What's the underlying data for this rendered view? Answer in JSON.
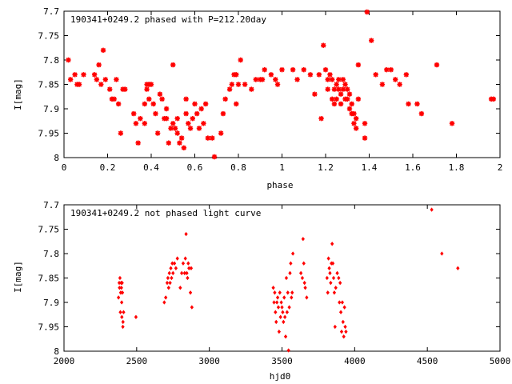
{
  "chart_data": [
    {
      "type": "scatter",
      "title": "190341+0249.2 phased with P=212.20day",
      "xlabel": "phase",
      "ylabel": "I[mag]",
      "xlim": [
        0,
        2
      ],
      "ylim": [
        8,
        7.7
      ],
      "y_inverted": true,
      "xticks": [
        "0",
        "0.2",
        "0.4",
        "0.6",
        "0.8",
        "1",
        "1.2",
        "1.4",
        "1.6",
        "1.8",
        "2"
      ],
      "yticks": [
        "7.7",
        "7.75",
        "7.8",
        "7.85",
        "7.9",
        "7.95",
        "8"
      ],
      "marker_color": "#ff0000",
      "marker": "star",
      "grid": false,
      "series": [
        {
          "points": [
            [
              0.02,
              7.8
            ],
            [
              0.03,
              7.84
            ],
            [
              0.05,
              7.83
            ],
            [
              0.06,
              7.85
            ],
            [
              0.07,
              7.85
            ],
            [
              0.09,
              7.83
            ],
            [
              0.14,
              7.83
            ],
            [
              0.15,
              7.84
            ],
            [
              0.16,
              7.81
            ],
            [
              0.17,
              7.85
            ],
            [
              0.18,
              7.78
            ],
            [
              0.19,
              7.84
            ],
            [
              0.21,
              7.86
            ],
            [
              0.22,
              7.88
            ],
            [
              0.23,
              7.88
            ],
            [
              0.24,
              7.84
            ],
            [
              0.25,
              7.89
            ],
            [
              0.26,
              7.95
            ],
            [
              0.27,
              7.86
            ],
            [
              0.28,
              7.86
            ],
            [
              0.32,
              7.91
            ],
            [
              0.33,
              7.93
            ],
            [
              0.34,
              7.97
            ],
            [
              0.35,
              7.92
            ],
            [
              0.37,
              7.93
            ],
            [
              0.37,
              7.89
            ],
            [
              0.38,
              7.86
            ],
            [
              0.38,
              7.85
            ],
            [
              0.39,
              7.88
            ],
            [
              0.39,
              7.85
            ],
            [
              0.4,
              7.85
            ],
            [
              0.41,
              7.89
            ],
            [
              0.42,
              7.91
            ],
            [
              0.43,
              7.95
            ],
            [
              0.44,
              7.87
            ],
            [
              0.45,
              7.88
            ],
            [
              0.46,
              7.92
            ],
            [
              0.47,
              7.9
            ],
            [
              0.47,
              7.92
            ],
            [
              0.48,
              7.97
            ],
            [
              0.49,
              7.94
            ],
            [
              0.5,
              7.81
            ],
            [
              0.5,
              7.93
            ],
            [
              0.51,
              7.94
            ],
            [
              0.52,
              7.95
            ],
            [
              0.52,
              7.92
            ],
            [
              0.53,
              7.97
            ],
            [
              0.54,
              7.96
            ],
            [
              0.55,
              7.98
            ],
            [
              0.56,
              7.88
            ],
            [
              0.56,
              7.91
            ],
            [
              0.57,
              7.93
            ],
            [
              0.58,
              7.94
            ],
            [
              0.59,
              7.92
            ],
            [
              0.6,
              7.89
            ],
            [
              0.61,
              7.91
            ],
            [
              0.62,
              7.94
            ],
            [
              0.63,
              7.9
            ],
            [
              0.64,
              7.93
            ],
            [
              0.65,
              7.89
            ],
            [
              0.66,
              7.96
            ],
            [
              0.68,
              7.96
            ],
            [
              0.69,
              8.0
            ],
            [
              0.72,
              7.95
            ],
            [
              0.73,
              7.91
            ],
            [
              0.74,
              7.88
            ],
            [
              0.76,
              7.86
            ],
            [
              0.77,
              7.85
            ],
            [
              0.78,
              7.83
            ],
            [
              0.79,
              7.89
            ],
            [
              0.79,
              7.83
            ],
            [
              0.8,
              7.85
            ],
            [
              0.81,
              7.8
            ],
            [
              0.83,
              7.85
            ],
            [
              0.86,
              7.86
            ],
            [
              0.88,
              7.84
            ],
            [
              0.9,
              7.84
            ],
            [
              0.91,
              7.84
            ],
            [
              0.92,
              7.82
            ],
            [
              0.95,
              7.83
            ],
            [
              0.97,
              7.84
            ],
            [
              0.98,
              7.85
            ],
            [
              1.0,
              7.82
            ],
            [
              1.05,
              7.82
            ],
            [
              1.07,
              7.84
            ],
            [
              1.1,
              7.82
            ],
            [
              1.13,
              7.83
            ],
            [
              1.15,
              7.87
            ],
            [
              1.17,
              7.83
            ],
            [
              1.18,
              7.92
            ],
            [
              1.19,
              7.77
            ],
            [
              1.2,
              7.82
            ],
            [
              1.21,
              7.86
            ],
            [
              1.21,
              7.84
            ],
            [
              1.22,
              7.83
            ],
            [
              1.23,
              7.88
            ],
            [
              1.23,
              7.84
            ],
            [
              1.24,
              7.89
            ],
            [
              1.24,
              7.86
            ],
            [
              1.25,
              7.88
            ],
            [
              1.25,
              7.85
            ],
            [
              1.26,
              7.84
            ],
            [
              1.26,
              7.86
            ],
            [
              1.27,
              7.87
            ],
            [
              1.27,
              7.89
            ],
            [
              1.28,
              7.86
            ],
            [
              1.28,
              7.84
            ],
            [
              1.29,
              7.88
            ],
            [
              1.29,
              7.85
            ],
            [
              1.3,
              7.86
            ],
            [
              1.3,
              7.88
            ],
            [
              1.31,
              7.87
            ],
            [
              1.31,
              7.9
            ],
            [
              1.32,
              7.91
            ],
            [
              1.32,
              7.89
            ],
            [
              1.33,
              7.93
            ],
            [
              1.33,
              7.91
            ],
            [
              1.34,
              7.94
            ],
            [
              1.34,
              7.92
            ],
            [
              1.35,
              7.88
            ],
            [
              1.35,
              7.81
            ],
            [
              1.38,
              7.96
            ],
            [
              1.38,
              7.93
            ],
            [
              1.39,
              7.7
            ],
            [
              1.41,
              7.76
            ],
            [
              1.43,
              7.83
            ],
            [
              1.46,
              7.85
            ],
            [
              1.48,
              7.82
            ],
            [
              1.5,
              7.82
            ],
            [
              1.52,
              7.84
            ],
            [
              1.54,
              7.85
            ],
            [
              1.57,
              7.83
            ],
            [
              1.58,
              7.89
            ],
            [
              1.62,
              7.89
            ],
            [
              1.64,
              7.91
            ],
            [
              1.71,
              7.81
            ],
            [
              1.78,
              7.93
            ],
            [
              1.96,
              7.88
            ],
            [
              1.97,
              7.88
            ]
          ]
        }
      ]
    },
    {
      "type": "scatter",
      "title": "190341+0249.2 not phased light curve",
      "xlabel": "hjd0",
      "ylabel": "I[mag]",
      "xlim": [
        2000,
        5000
      ],
      "ylim": [
        8,
        7.7
      ],
      "y_inverted": true,
      "xticks": [
        "2000",
        "2500",
        "3000",
        "3500",
        "4000",
        "4500",
        "5000"
      ],
      "yticks": [
        "7.7",
        "7.75",
        "7.8",
        "7.85",
        "7.9",
        "7.95",
        "8"
      ],
      "marker_color": "#ff0000",
      "marker": "diamond",
      "grid": false,
      "series": [
        {
          "points": [
            [
              2375,
              7.89
            ],
            [
              2380,
              7.86
            ],
            [
              2382,
              7.87
            ],
            [
              2385,
              7.85
            ],
            [
              2388,
              7.92
            ],
            [
              2390,
              7.88
            ],
            [
              2393,
              7.86
            ],
            [
              2395,
              7.87
            ],
            [
              2397,
              7.9
            ],
            [
              2398,
              7.93
            ],
            [
              2400,
              7.86
            ],
            [
              2402,
              7.88
            ],
            [
              2405,
              7.95
            ],
            [
              2406,
              7.94
            ],
            [
              2410,
              7.92
            ],
            [
              2495,
              7.93
            ],
            [
              2690,
              7.9
            ],
            [
              2700,
              7.89
            ],
            [
              2710,
              7.86
            ],
            [
              2715,
              7.85
            ],
            [
              2720,
              7.87
            ],
            [
              2725,
              7.84
            ],
            [
              2730,
              7.86
            ],
            [
              2735,
              7.83
            ],
            [
              2740,
              7.85
            ],
            [
              2745,
              7.82
            ],
            [
              2750,
              7.84
            ],
            [
              2760,
              7.82
            ],
            [
              2770,
              7.83
            ],
            [
              2780,
              7.81
            ],
            [
              2800,
              7.87
            ],
            [
              2810,
              7.84
            ],
            [
              2820,
              7.82
            ],
            [
              2830,
              7.84
            ],
            [
              2835,
              7.81
            ],
            [
              2840,
              7.76
            ],
            [
              2845,
              7.84
            ],
            [
              2850,
              7.85
            ],
            [
              2855,
              7.82
            ],
            [
              2860,
              7.83
            ],
            [
              2870,
              7.88
            ],
            [
              2875,
              7.83
            ],
            [
              2880,
              7.91
            ],
            [
              3440,
              7.87
            ],
            [
              3445,
              7.9
            ],
            [
              3450,
              7.88
            ],
            [
              3455,
              7.92
            ],
            [
              3460,
              7.94
            ],
            [
              3465,
              7.9
            ],
            [
              3470,
              7.89
            ],
            [
              3475,
              7.91
            ],
            [
              3480,
              7.96
            ],
            [
              3485,
              7.88
            ],
            [
              3490,
              7.93
            ],
            [
              3495,
              7.9
            ],
            [
              3500,
              7.91
            ],
            [
              3505,
              7.92
            ],
            [
              3510,
              7.94
            ],
            [
              3515,
              7.89
            ],
            [
              3520,
              7.93
            ],
            [
              3525,
              7.97
            ],
            [
              3530,
              7.85
            ],
            [
              3535,
              7.92
            ],
            [
              3540,
              7.88
            ],
            [
              3545,
              8.0
            ],
            [
              3550,
              7.91
            ],
            [
              3555,
              7.84
            ],
            [
              3560,
              7.82
            ],
            [
              3565,
              7.89
            ],
            [
              3570,
              7.88
            ],
            [
              3575,
              7.8
            ],
            [
              3630,
              7.84
            ],
            [
              3640,
              7.85
            ],
            [
              3645,
              7.77
            ],
            [
              3650,
              7.82
            ],
            [
              3655,
              7.86
            ],
            [
              3660,
              7.87
            ],
            [
              3670,
              7.89
            ],
            [
              3810,
              7.85
            ],
            [
              3815,
              7.88
            ],
            [
              3820,
              7.81
            ],
            [
              3825,
              7.83
            ],
            [
              3830,
              7.84
            ],
            [
              3835,
              7.86
            ],
            [
              3840,
              7.82
            ],
            [
              3845,
              7.78
            ],
            [
              3850,
              7.82
            ],
            [
              3855,
              7.85
            ],
            [
              3860,
              7.88
            ],
            [
              3865,
              7.95
            ],
            [
              3870,
              7.87
            ],
            [
              3880,
              7.84
            ],
            [
              3890,
              7.85
            ],
            [
              3895,
              7.9
            ],
            [
              3900,
              7.86
            ],
            [
              3905,
              7.92
            ],
            [
              3910,
              7.96
            ],
            [
              3915,
              7.9
            ],
            [
              3920,
              7.94
            ],
            [
              3925,
              7.97
            ],
            [
              3930,
              7.91
            ],
            [
              3935,
              7.95
            ],
            [
              3940,
              7.96
            ],
            [
              4530,
              7.71
            ],
            [
              4600,
              7.8
            ],
            [
              4710,
              7.83
            ]
          ]
        }
      ]
    }
  ]
}
